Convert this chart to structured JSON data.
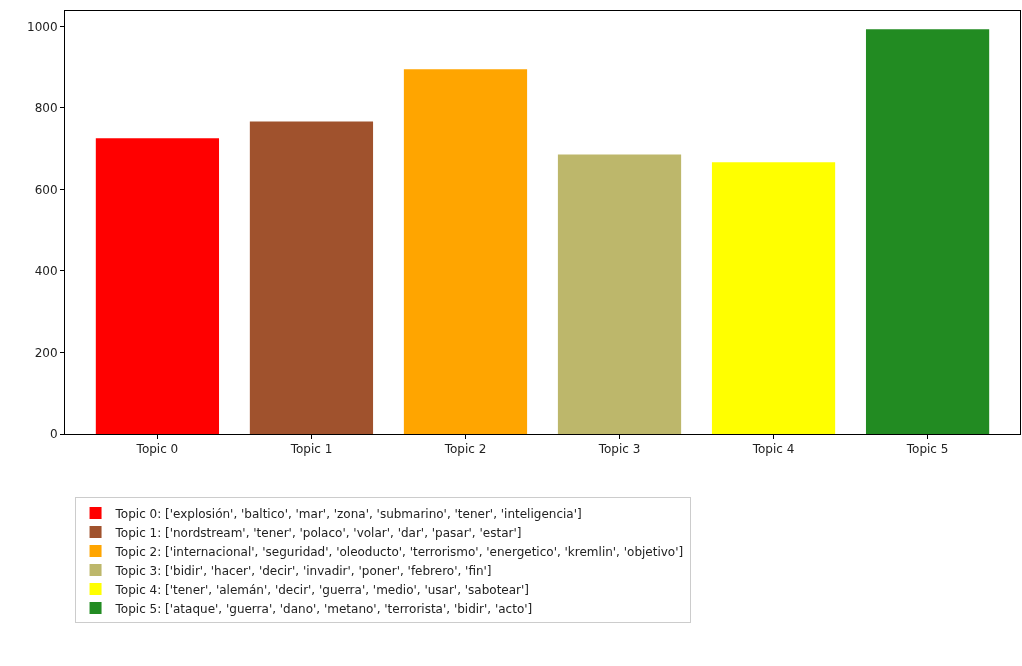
{
  "chart_data": {
    "type": "bar",
    "categories": [
      "Topic 0",
      "Topic 1",
      "Topic 2",
      "Topic 3",
      "Topic 4",
      "Topic 5"
    ],
    "series": [
      {
        "name": "Topic 0: ['explosión', 'baltico', 'mar', 'zona', 'submarino', 'tener', 'inteligencia']",
        "color": "#ff0000",
        "values": [
          726,
          null,
          null,
          null,
          null,
          null
        ]
      },
      {
        "name": "Topic 1: ['nordstream', 'tener', 'polaco', 'volar', 'dar', 'pasar', 'estar']",
        "color": "#a0522d",
        "values": [
          null,
          767,
          null,
          null,
          null,
          null
        ]
      },
      {
        "name": "Topic 2: ['internacional', 'seguridad', 'oleoducto', 'terrorismo', 'energetico', 'kremlin', 'objetivo']",
        "color": "#ffa500",
        "values": [
          null,
          null,
          895,
          null,
          null,
          null
        ]
      },
      {
        "name": "Topic 3: ['bidir', 'hacer', 'decir', 'invadir', 'poner', 'febrero', 'fin']",
        "color": "#bdb76b",
        "values": [
          null,
          null,
          null,
          686,
          null,
          null
        ]
      },
      {
        "name": "Topic 4: ['tener', 'alemán', 'decir', 'guerra', 'medio', 'usar', 'sabotear']",
        "color": "#ffff00",
        "values": [
          null,
          null,
          null,
          null,
          667,
          null
        ]
      },
      {
        "name": "Topic 5: ['ataque', 'guerra', 'dano', 'metano', 'terrorista', 'bidir', 'acto']",
        "color": "#228b22",
        "values": [
          null,
          null,
          null,
          null,
          null,
          993
        ]
      }
    ],
    "ylim": [
      0,
      1038
    ],
    "yticks": [
      0,
      200,
      400,
      600,
      800,
      1000
    ],
    "legend": "bottom left"
  }
}
